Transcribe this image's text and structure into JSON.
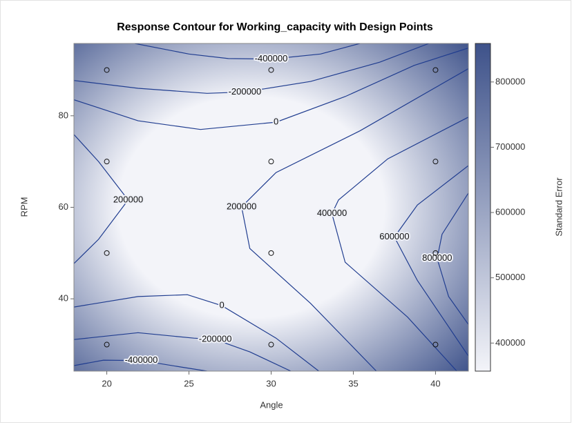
{
  "chart_data": {
    "type": "contour",
    "title": "Response Contour for Working_capacity with Design Points",
    "xlabel": "Angle",
    "ylabel": "RPM",
    "colorbar_label": "Standard Error",
    "xlim": [
      18.0,
      42.0
    ],
    "ylim": [
      24.2,
      95.8
    ],
    "xticks": [
      20,
      25,
      30,
      35,
      40
    ],
    "yticks": [
      40,
      60,
      80
    ],
    "clim": [
      357000,
      859000
    ],
    "cticks": [
      400000,
      500000,
      600000,
      700000,
      800000
    ],
    "colorscale": [
      "#f3f4f9",
      "#3e528a"
    ],
    "line_color": "#1f3c8f",
    "points": {
      "x": [
        20,
        20,
        20,
        20,
        30,
        30,
        30,
        30,
        40,
        40,
        40,
        40
      ],
      "y": [
        30,
        50,
        70,
        90,
        30,
        50,
        70,
        90,
        30,
        50,
        70,
        90
      ]
    },
    "contours": [
      {
        "level": -400000,
        "x": [
          21.7,
          25,
          27.4,
          30,
          33,
          35.4
        ],
        "y": [
          95.8,
          93.5,
          92.5,
          92.4,
          93.5,
          95.8
        ]
      },
      {
        "level": -200000,
        "x": [
          18.0,
          21.9,
          26.1,
          28.4,
          32.4,
          36.6,
          39.6
        ],
        "y": [
          87.7,
          86.0,
          84.9,
          85.2,
          87.5,
          91.7,
          95.8
        ]
      },
      {
        "level": 0,
        "x": [
          18.0,
          21.9,
          25.7,
          30.3,
          34.5,
          38.7,
          42.0
        ],
        "y": [
          83.5,
          78.9,
          77.0,
          78.6,
          84.2,
          91.0,
          94.8
        ]
      },
      {
        "level": 200000,
        "x": [
          18.0,
          19.5,
          21.3,
          19.5,
          18.0
        ],
        "y": [
          75.9,
          70,
          61.6,
          53,
          47.7
        ]
      },
      {
        "level": 200000,
        "x": [
          42.0,
          35.4,
          30.3,
          28.2,
          28.7,
          32.4,
          36.4
        ],
        "y": [
          90.3,
          76.7,
          67.6,
          60.1,
          51.0,
          39.0,
          24.2
        ]
      },
      {
        "level": 400000,
        "x": [
          42.0,
          37.1,
          34.1,
          33.7,
          34.5,
          38.3,
          41.3
        ],
        "y": [
          79.7,
          70.6,
          61.6,
          58.6,
          48.0,
          36.0,
          24.2
        ]
      },
      {
        "level": 600000,
        "x": [
          42.0,
          38.9,
          37.5,
          38.9,
          42.0
        ],
        "y": [
          69.1,
          60.5,
          53.5,
          44,
          27.5
        ]
      },
      {
        "level": 800000,
        "x": [
          42.0,
          40.4,
          40.1,
          40.8,
          42.0
        ],
        "y": [
          63.1,
          54.1,
          48.8,
          40.5,
          34.4
        ]
      },
      {
        "level": 0,
        "x": [
          18.0,
          21.9,
          24.9,
          27.0,
          30.3,
          32.9
        ],
        "y": [
          38.2,
          40.5,
          40.9,
          38.5,
          31.4,
          24.2
        ]
      },
      {
        "level": -200000,
        "x": [
          18.0,
          21.9,
          25.3,
          26.6,
          28.7,
          31.2
        ],
        "y": [
          31.1,
          32.6,
          31.4,
          31.1,
          28.4,
          24.2
        ]
      },
      {
        "level": -400000,
        "x": [
          18.0,
          19.8,
          22.1,
          24.5,
          26.1
        ],
        "y": [
          25.4,
          26.6,
          26.5,
          25.1,
          24.2
        ]
      }
    ]
  }
}
